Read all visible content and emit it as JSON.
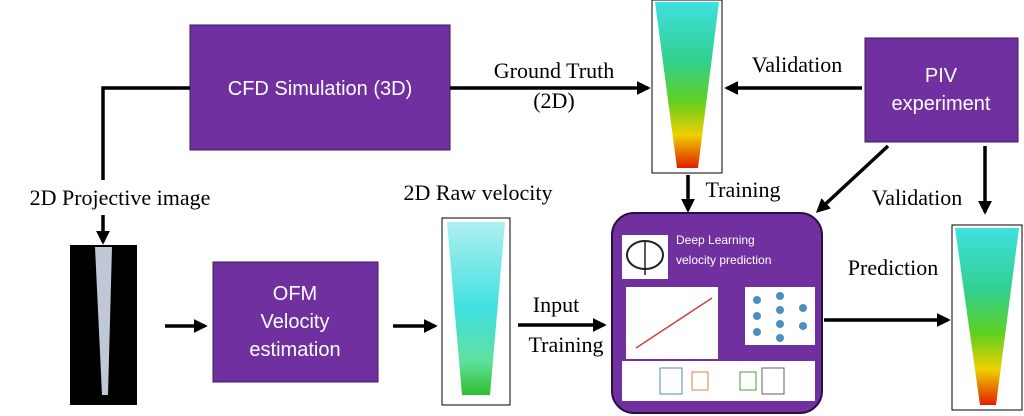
{
  "nodes": [
    {
      "label": "CFD Simulation (3D)"
    },
    {
      "lines": [
        "PIV",
        "experiment"
      ]
    },
    {
      "lines": [
        "OFM",
        "Velocity",
        "estimation"
      ]
    },
    {
      "lines": [
        "Deep Learning",
        "velocity prediction"
      ]
    }
  ],
  "edges": [
    {
      "label": "Ground Truth",
      "sublabel": "(2D)"
    },
    {
      "label": "Validation"
    },
    {
      "label": "2D Projective image"
    },
    {
      "label": "Training"
    },
    {
      "label": "Validation"
    },
    {
      "label": "2D Raw velocity"
    },
    {
      "label": "Input",
      "sublabel": "Training"
    },
    {
      "label": "Prediction"
    }
  ]
}
